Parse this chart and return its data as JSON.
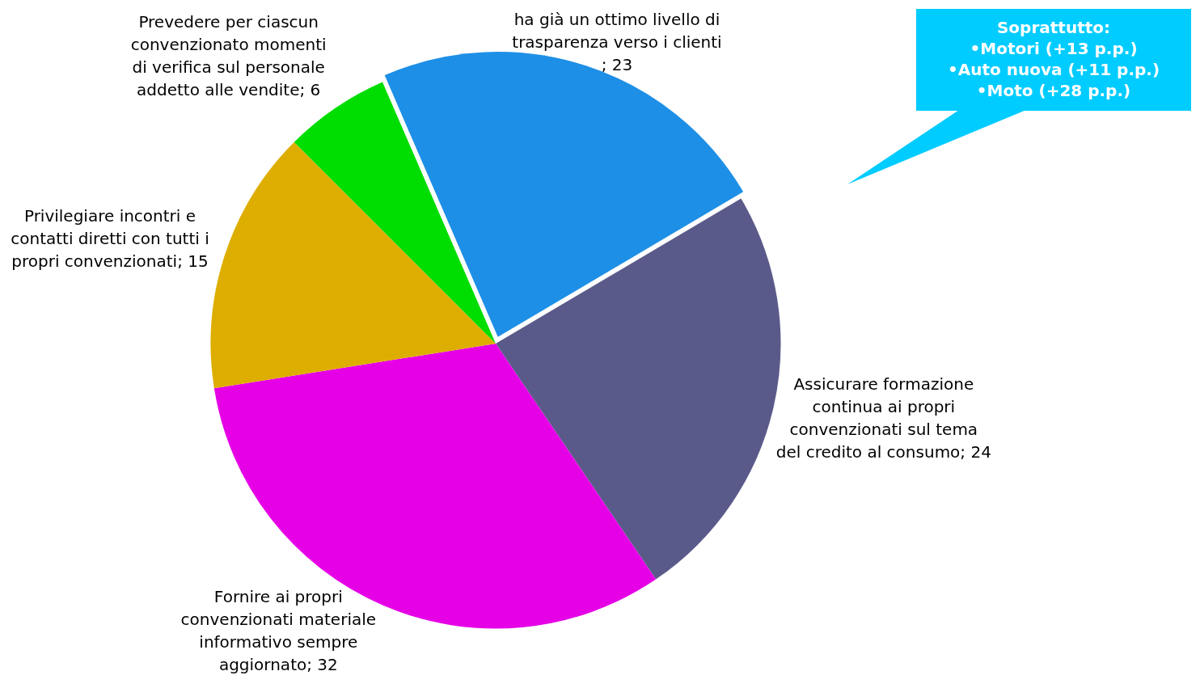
{
  "chart_data": {
    "type": "pie",
    "categories": [
      "ha già un ottimo livello di trasparenza verso i clienti",
      "Assicurare formazione continua ai propri convenzionati sul tema del credito al consumo",
      "Fornire ai propri convenzionati materiale informativo sempre aggiornato",
      "Privilegiare incontri e contatti diretti con tutti i propri convenzionati",
      "Prevedere per ciascun convenzionato momenti di verifica sul personale addetto alle vendite"
    ],
    "values": [
      23,
      24,
      32,
      15,
      6
    ],
    "colors": [
      "#1e8fe6",
      "#5a5a8a",
      "#e600e6",
      "#ddae00",
      "#00dd00"
    ],
    "value_labels": [
      "; 23",
      "; 24",
      "; 32",
      "; 15",
      "; 6"
    ],
    "legend": false,
    "annotations": [
      "Soprattutto:\n•Motori (+13 p.p.)\n•Auto nuova (+11 p.p.)\n•Moto (+28 p.p.)"
    ]
  }
}
